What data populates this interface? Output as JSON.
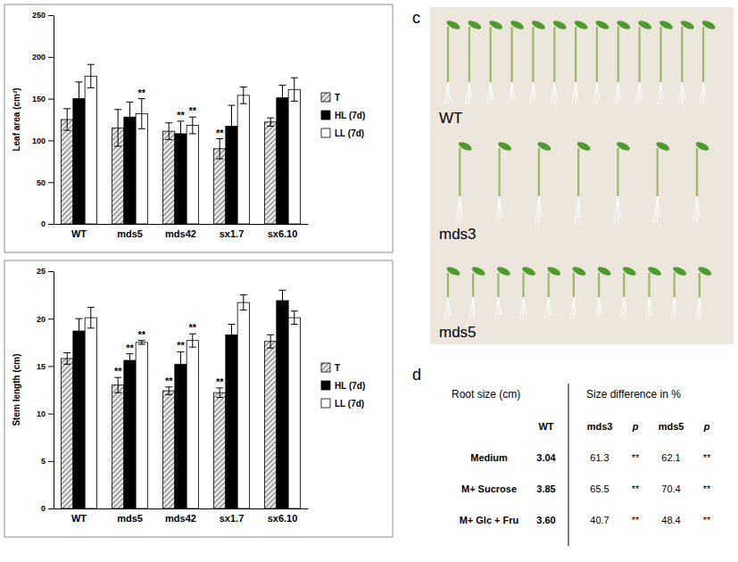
{
  "chart_data": [
    {
      "type": "bar",
      "y_label": "Leaf area (cm²)",
      "categories": [
        "WT",
        "mds5",
        "mds42",
        "sx1.7",
        "sx6.10"
      ],
      "ylim": [
        0,
        250
      ],
      "yticks": [
        0,
        50,
        100,
        150,
        200,
        250
      ],
      "grid": false,
      "legend": "right",
      "series": [
        {
          "name": "T",
          "color": "#595959",
          "line_style": "hatched",
          "values": [
            125,
            115,
            111,
            90,
            122
          ],
          "errors": [
            13,
            22,
            10,
            12,
            5
          ],
          "significance": [
            null,
            null,
            null,
            "**",
            null
          ]
        },
        {
          "name": "HL (7d)",
          "color": "#000000",
          "line_style": "solid",
          "values": [
            150,
            128,
            108,
            117,
            151
          ],
          "errors": [
            20,
            18,
            15,
            25,
            15
          ],
          "significance": [
            null,
            null,
            "**",
            null,
            null
          ]
        },
        {
          "name": "LL (7d)",
          "color": "#ffffff",
          "line_style": "solid",
          "values": [
            177,
            132,
            118,
            154,
            161
          ],
          "errors": [
            14,
            18,
            10,
            10,
            14
          ],
          "significance": [
            null,
            "**",
            "**",
            null,
            null
          ]
        }
      ]
    },
    {
      "type": "bar",
      "y_label": "Stem length (cm)",
      "categories": [
        "WT",
        "mds5",
        "mds42",
        "sx1.7",
        "sx6.10"
      ],
      "ylim": [
        0,
        25
      ],
      "yticks": [
        0,
        5,
        10,
        15,
        20,
        25
      ],
      "grid": false,
      "legend": "right",
      "series": [
        {
          "name": "T",
          "color": "#595959",
          "line_style": "hatched",
          "values": [
            15.8,
            13.0,
            12.4,
            12.2,
            17.6
          ],
          "errors": [
            0.6,
            0.8,
            0.4,
            0.5,
            0.7
          ],
          "significance": [
            null,
            "**",
            "**",
            "**",
            null
          ]
        },
        {
          "name": "HL (7d)",
          "color": "#000000",
          "line_style": "solid",
          "values": [
            18.7,
            15.6,
            15.2,
            18.3,
            21.9
          ],
          "errors": [
            1.3,
            0.7,
            1.3,
            1.1,
            1.1
          ],
          "significance": [
            null,
            "**",
            "**",
            null,
            null
          ]
        },
        {
          "name": "LL (7d)",
          "color": "#ffffff",
          "line_style": "solid",
          "values": [
            20.1,
            17.5,
            17.7,
            21.7,
            20.1
          ],
          "errors": [
            1.1,
            0.2,
            0.7,
            0.8,
            0.7
          ],
          "significance": [
            null,
            "**",
            "**",
            null,
            null
          ]
        }
      ]
    }
  ],
  "photo": {
    "letter": "c",
    "labels": [
      "WT",
      "mds3",
      "mds5"
    ]
  },
  "table": {
    "letter": "d",
    "header": [
      "Root size (cm)",
      "Size difference in %"
    ],
    "columns": [
      "WT",
      "mds3",
      "p",
      "mds5",
      "p"
    ],
    "rows": [
      {
        "label": "Medium",
        "cells": [
          "3.04",
          "61.3",
          "**",
          "62.1",
          "**"
        ]
      },
      {
        "label": "M+ Sucrose",
        "cells": [
          "3.85",
          "65.5",
          "**",
          "70.4",
          "**"
        ]
      },
      {
        "label": "M+ Glc + Fru",
        "cells": [
          "3.60",
          "40.7",
          "**",
          "48.4",
          "**"
        ]
      }
    ]
  }
}
